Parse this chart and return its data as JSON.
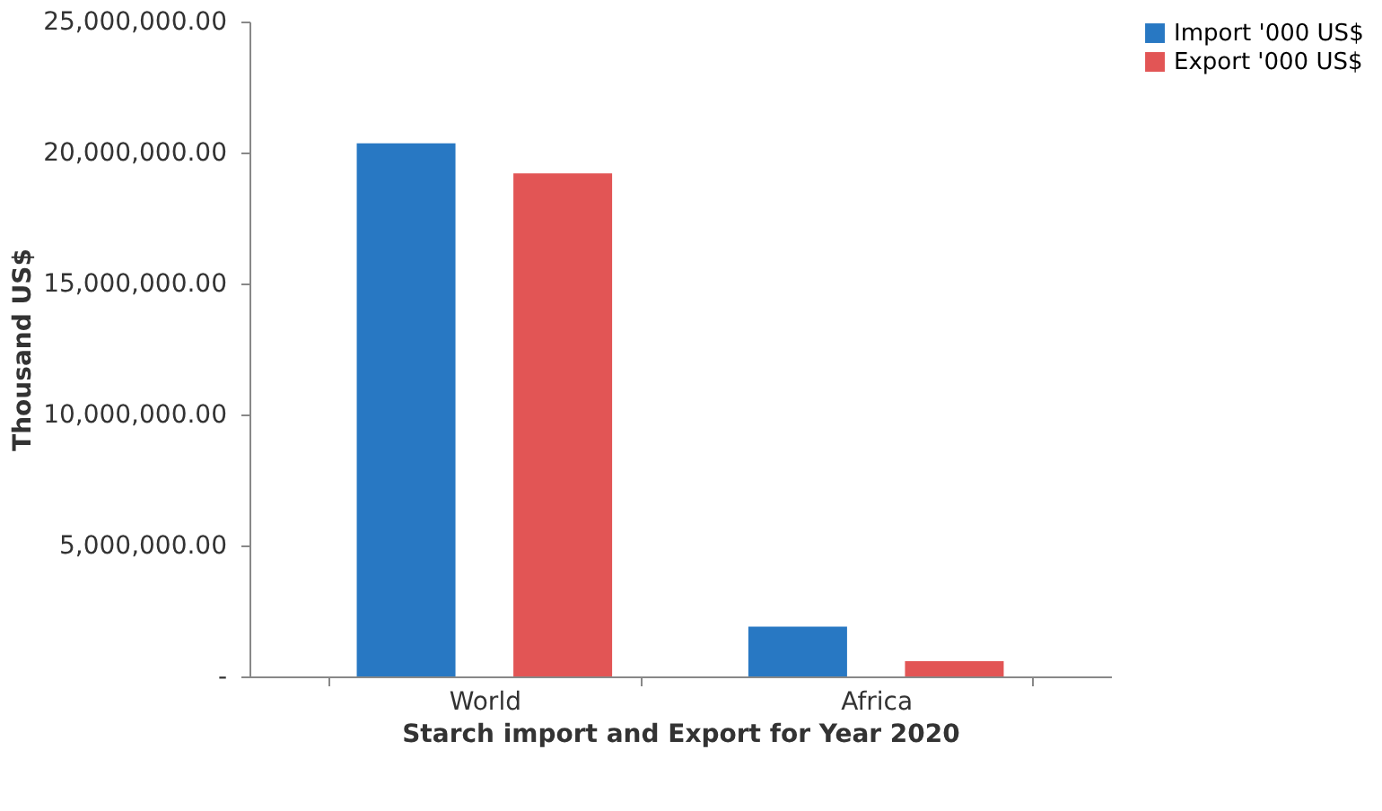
{
  "chart_data": {
    "type": "bar",
    "xlabel": "Starch import and Export for Year 2020",
    "ylabel": "Thousand  US$",
    "categories": [
      "World",
      "Africa"
    ],
    "series": [
      {
        "name": "Import '000 US$",
        "color": "#2878c3",
        "values": [
          20350000,
          1900000
        ]
      },
      {
        "name": "Export '000 US$",
        "color": "#e25555",
        "values": [
          19200000,
          580000
        ]
      }
    ],
    "ylim": [
      0,
      25000000
    ],
    "yticks": [
      {
        "value": 0,
        "label": "-"
      },
      {
        "value": 5000000,
        "label": "5,000,000.00"
      },
      {
        "value": 10000000,
        "label": "10,000,000.00"
      },
      {
        "value": 15000000,
        "label": "15,000,000.00"
      },
      {
        "value": 20000000,
        "label": "20,000,000.00"
      },
      {
        "value": 25000000,
        "label": "25,000,000.00"
      }
    ],
    "grid": false,
    "legend": "right"
  }
}
